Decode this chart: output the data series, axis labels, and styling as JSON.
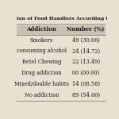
{
  "columns": [
    "Addiction",
    "Number (%)"
  ],
  "rows": [
    [
      "Smokers",
      "49 (30.06)"
    ],
    [
      "consuming alcohol",
      "24 (14.72)"
    ],
    [
      "Betel Chewing",
      "22 (13.49)"
    ],
    [
      "Drug addiction",
      "00 (00.00)"
    ],
    [
      "Mixed/double habits",
      "14 (08.58)"
    ],
    [
      "No addiction",
      "89 (54.60)"
    ]
  ],
  "bg_color": "#e8e0d0",
  "header_bg": "#c8c0b0",
  "line_color": "#888070",
  "text_color": "#1a1a1a",
  "font_size": 4.8,
  "header_font_size": 5.0,
  "title_text": "ion of Food Handlers According to their Hab",
  "title_font_size": 4.5
}
